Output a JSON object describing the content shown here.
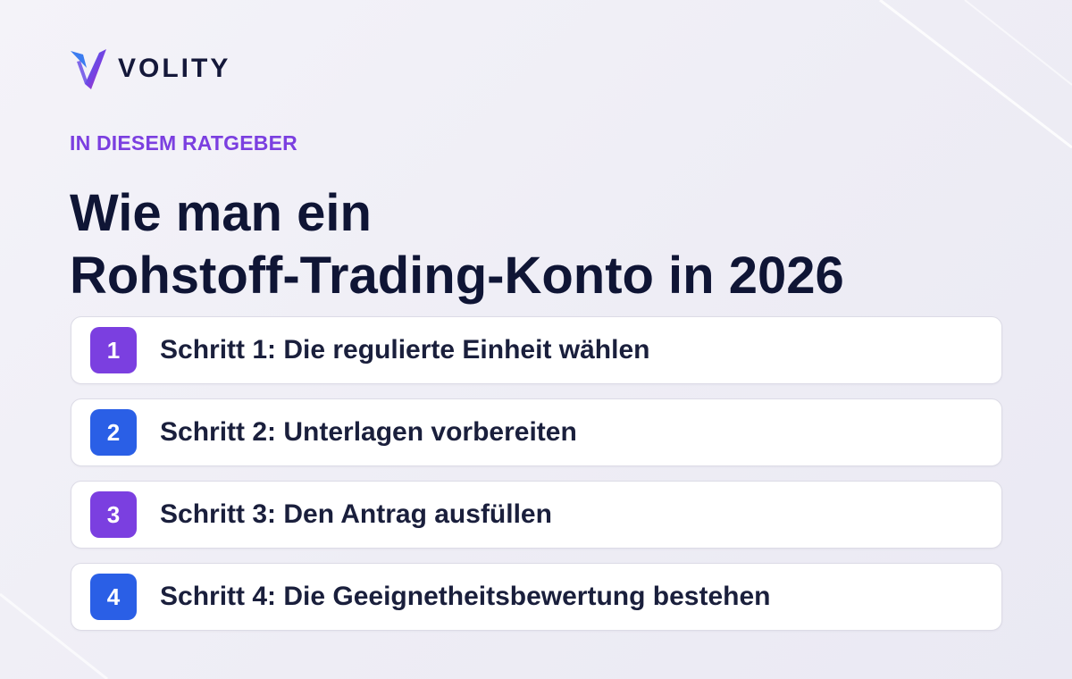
{
  "brand": {
    "name": "VOLITY",
    "logo_icon": "volity-v-logo-icon",
    "colors": {
      "purple": "#7b3fe0",
      "blue": "#2a5fe6",
      "navy": "#14183a"
    }
  },
  "eyebrow": "IN DIESEM RATGEBER",
  "title": {
    "line1": "Wie man ein",
    "line2": "Rohstoff-Trading-Konto in 2026"
  },
  "steps": [
    {
      "number": "1",
      "label": "Schritt 1: Die regulierte Einheit wählen",
      "color": "#7b3fe0"
    },
    {
      "number": "2",
      "label": "Schritt 2: Unterlagen vorbereiten",
      "color": "#2a5fe6"
    },
    {
      "number": "3",
      "label": "Schritt 3: Den Antrag ausfüllen",
      "color": "#7b3fe0"
    },
    {
      "number": "4",
      "label": "Schritt 4: Die Geeignetheitsbewertung bestehen",
      "color": "#2a5fe6"
    }
  ]
}
